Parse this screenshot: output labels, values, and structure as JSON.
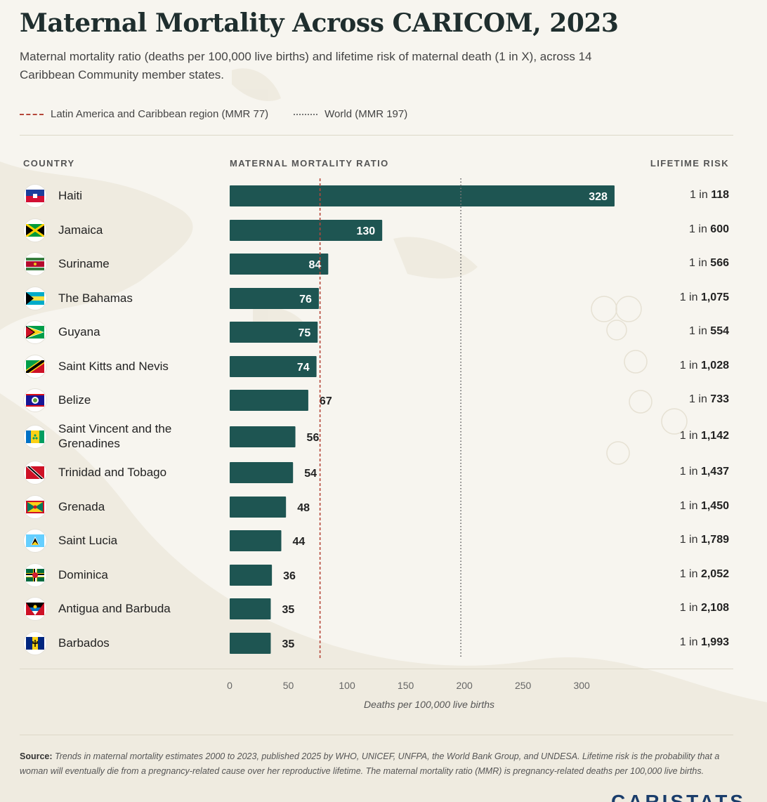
{
  "title": "Maternal Mortality Across CARICOM, 2023",
  "subtitle": "Maternal mortality ratio (deaths per 100,000 live births) and lifetime risk of maternal death (1 in X), across 14 Caribbean Community member states.",
  "legend": {
    "lac": "Latin America and Caribbean region (MMR 77)",
    "world": "World (MMR 197)"
  },
  "columns": {
    "country": "COUNTRY",
    "mmr": "MATERNAL MORTALITY RATIO",
    "risk": "LIFETIME RISK"
  },
  "colors": {
    "bar": "#1e5552",
    "lac_line": "#b5473a",
    "world_line": "#777777"
  },
  "chart_data": {
    "type": "bar",
    "orientation": "horizontal",
    "categories": [
      "Haiti",
      "Jamaica",
      "Suriname",
      "The Bahamas",
      "Guyana",
      "Saint Kitts and Nevis",
      "Belize",
      "Saint Vincent and the Grenadines",
      "Trinidad and Tobago",
      "Grenada",
      "Saint Lucia",
      "Dominica",
      "Antigua and Barbuda",
      "Barbados"
    ],
    "values": [
      328,
      130,
      84,
      76,
      75,
      74,
      67,
      56,
      54,
      48,
      44,
      36,
      35,
      35
    ],
    "lifetime_risk_prefix": "1 in",
    "lifetime_risk": [
      "118",
      "600",
      "566",
      "1,075",
      "554",
      "1,028",
      "733",
      "1,142",
      "1,437",
      "1,450",
      "1,789",
      "2,052",
      "2,108",
      "1,993"
    ],
    "reference_lines": [
      {
        "name": "Latin America and Caribbean region",
        "value": 77,
        "style": "dashed"
      },
      {
        "name": "World",
        "value": 197,
        "style": "dotted"
      }
    ],
    "xlim": [
      0,
      340
    ],
    "xticks": [
      0,
      50,
      100,
      150,
      200,
      250,
      300
    ],
    "xlabel": "Deaths per 100,000 live births",
    "grid": false
  },
  "flags": [
    "haiti-flag-icon",
    "jamaica-flag-icon",
    "suriname-flag-icon",
    "bahamas-flag-icon",
    "guyana-flag-icon",
    "saint-kitts-flag-icon",
    "belize-flag-icon",
    "saint-vincent-flag-icon",
    "trinidad-flag-icon",
    "grenada-flag-icon",
    "saint-lucia-flag-icon",
    "dominica-flag-icon",
    "antigua-flag-icon",
    "barbados-flag-icon"
  ],
  "footer": {
    "label": "Source:",
    "text": "Trends in maternal mortality estimates 2000 to 2023, published 2025 by WHO, UNICEF, UNFPA, the World Bank Group, and UNDESA. Lifetime risk is the probability that a woman will eventually die from a pregnancy-related cause over her reproductive lifetime. The maternal mortality ratio (MMR) is pregnancy-related deaths per 100,000 live births."
  },
  "brand": "CARISTATS"
}
